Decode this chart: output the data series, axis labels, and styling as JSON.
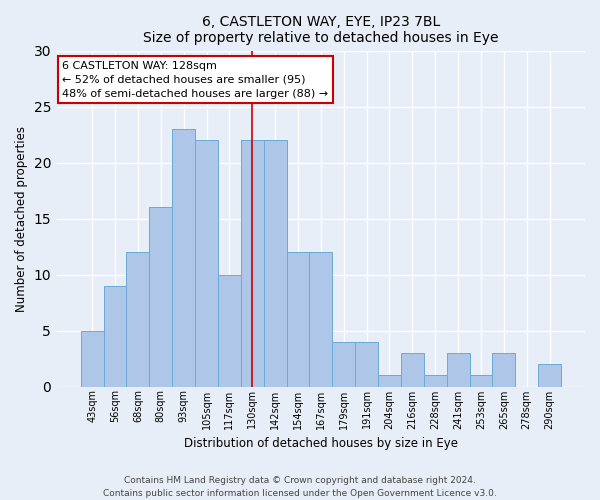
{
  "title1": "6, CASTLETON WAY, EYE, IP23 7BL",
  "title2": "Size of property relative to detached houses in Eye",
  "xlabel": "Distribution of detached houses by size in Eye",
  "ylabel": "Number of detached properties",
  "bar_labels": [
    "43sqm",
    "56sqm",
    "68sqm",
    "80sqm",
    "93sqm",
    "105sqm",
    "117sqm",
    "130sqm",
    "142sqm",
    "154sqm",
    "167sqm",
    "179sqm",
    "191sqm",
    "204sqm",
    "216sqm",
    "228sqm",
    "241sqm",
    "253sqm",
    "265sqm",
    "278sqm",
    "290sqm"
  ],
  "bar_values": [
    5,
    9,
    12,
    16,
    23,
    22,
    10,
    22,
    22,
    12,
    12,
    4,
    4,
    1,
    3,
    1,
    3,
    1,
    3,
    0,
    2
  ],
  "bar_color": "#aec6e8",
  "bar_edge_color": "#6aaad4",
  "vline_x": 7,
  "vline_color": "#cc0000",
  "ylim": [
    0,
    30
  ],
  "yticks": [
    0,
    5,
    10,
    15,
    20,
    25,
    30
  ],
  "annotation_text": "6 CASTLETON WAY: 128sqm\n← 52% of detached houses are smaller (95)\n48% of semi-detached houses are larger (88) →",
  "annotation_box_color": "#ffffff",
  "annotation_edge_color": "#cc0000",
  "footer1": "Contains HM Land Registry data © Crown copyright and database right 2024.",
  "footer2": "Contains public sector information licensed under the Open Government Licence v3.0.",
  "bg_color": "#e8eef8",
  "plot_bg_color": "#e8eef8",
  "grid_color": "#ffffff"
}
